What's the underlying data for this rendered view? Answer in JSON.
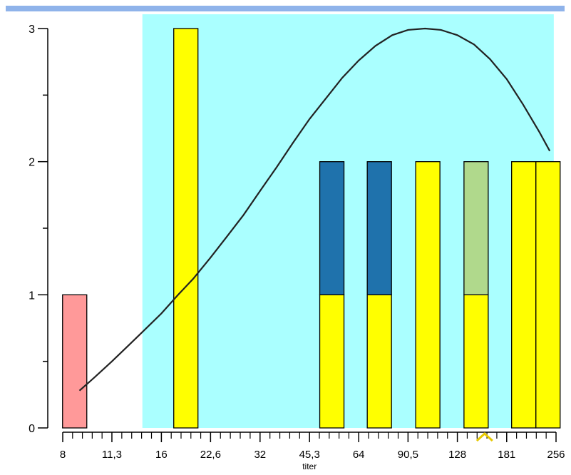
{
  "colors": {
    "top_bar": "#8fb3ea",
    "range_band": "#aaffff",
    "bar_red": "#ff9999",
    "bar_yellow": "#ffff00",
    "bar_blue": "#1f72ac",
    "bar_green": "#b0d98c",
    "marker": "#e6c800",
    "curve": "#222222",
    "axis": "#000000"
  },
  "chart_data": {
    "type": "bar",
    "title": "",
    "xlabel": "titer",
    "ylabel": "",
    "xscale": "log2",
    "xticks": [
      8,
      11.3,
      16,
      22.6,
      32,
      45.3,
      64,
      90.5,
      128,
      181,
      256
    ],
    "xtick_labels": [
      "8",
      "11,3",
      "16",
      "22,6",
      "32",
      "45,3",
      "64",
      "90,5",
      "128",
      "181",
      "256"
    ],
    "xlim": [
      8,
      256
    ],
    "ylim": [
      0,
      3
    ],
    "yticks": [
      0,
      1,
      2,
      3
    ],
    "ytick_labels": [
      "0",
      "1",
      "2",
      "3"
    ],
    "range_band": {
      "x_from": 14,
      "x_to": 252
    },
    "bars": [
      {
        "x": 8.7,
        "segments": [
          {
            "value": 1,
            "color": "red"
          }
        ]
      },
      {
        "x": 19,
        "segments": [
          {
            "value": 3,
            "color": "yellow"
          }
        ]
      },
      {
        "x": 53,
        "segments": [
          {
            "value": 1,
            "color": "yellow"
          },
          {
            "value": 1,
            "color": "blue"
          }
        ]
      },
      {
        "x": 74,
        "segments": [
          {
            "value": 1,
            "color": "yellow"
          },
          {
            "value": 1,
            "color": "blue"
          }
        ]
      },
      {
        "x": 104,
        "segments": [
          {
            "value": 2,
            "color": "yellow"
          }
        ]
      },
      {
        "x": 146,
        "segments": [
          {
            "value": 1,
            "color": "yellow"
          },
          {
            "value": 1,
            "color": "green"
          }
        ]
      },
      {
        "x": 204,
        "segments": [
          {
            "value": 2,
            "color": "yellow"
          }
        ]
      },
      {
        "x": 242,
        "segments": [
          {
            "value": 2,
            "color": "yellow"
          }
        ]
      }
    ],
    "fit_curve": {
      "x": [
        9,
        10,
        11.3,
        12.7,
        14,
        16,
        18,
        20,
        22.6,
        25.4,
        28.5,
        32,
        36,
        40.3,
        45.3,
        51,
        57,
        64,
        72,
        81,
        90.5,
        102,
        114,
        128,
        144,
        161,
        181,
        203,
        228,
        245
      ],
      "y": [
        0.28,
        0.38,
        0.5,
        0.62,
        0.72,
        0.86,
        1.0,
        1.12,
        1.28,
        1.44,
        1.6,
        1.78,
        1.96,
        2.14,
        2.32,
        2.48,
        2.63,
        2.76,
        2.87,
        2.95,
        2.99,
        3.0,
        2.99,
        2.95,
        2.88,
        2.77,
        2.62,
        2.43,
        2.22,
        2.08
      ]
    },
    "marker": {
      "x": 155
    }
  }
}
